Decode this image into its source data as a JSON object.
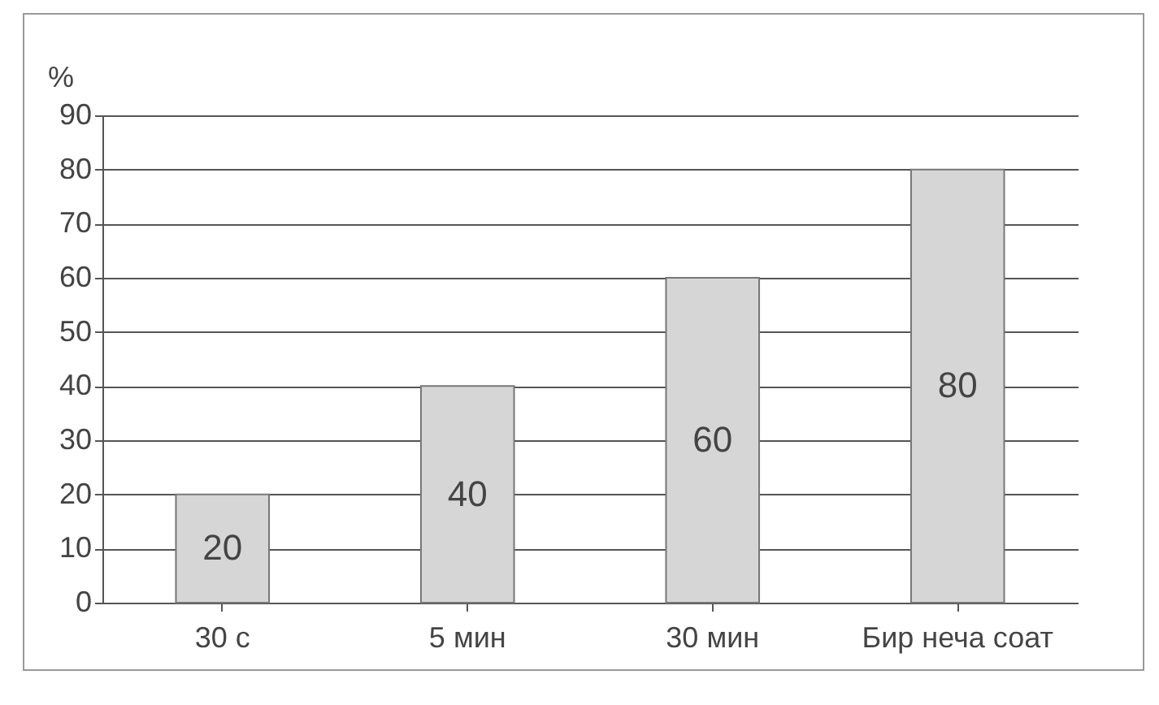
{
  "chart_data": {
    "type": "bar",
    "ylabel": "%",
    "categories": [
      "30 с",
      "5 мин",
      "30 мин",
      "Бир неча соат"
    ],
    "values": [
      20,
      40,
      60,
      80
    ],
    "color": "#d6d6d6",
    "ylim": [
      0,
      90
    ],
    "yticks": [
      0,
      10,
      20,
      30,
      40,
      50,
      60,
      70,
      80,
      90
    ],
    "grid": "y",
    "data_labels": true
  }
}
